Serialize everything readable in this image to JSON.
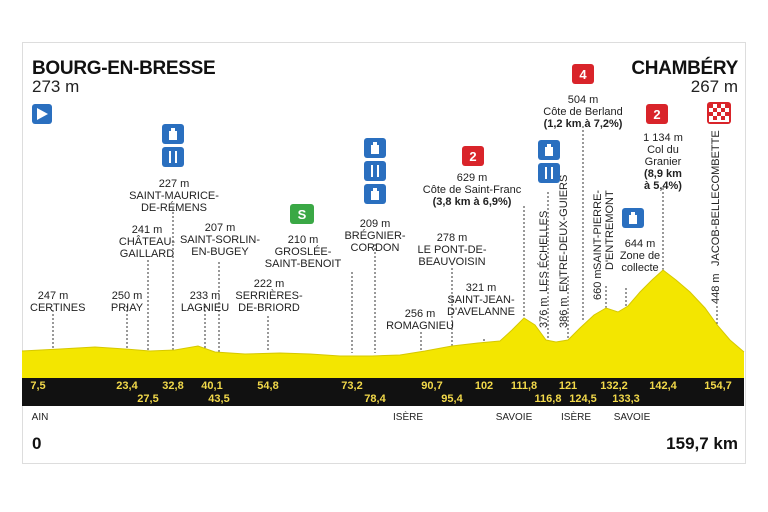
{
  "start": {
    "name": "BOURG-EN-BRESSE",
    "alt": "273 m"
  },
  "finish": {
    "name": "CHAMBÉRY",
    "alt": "267 m"
  },
  "distance_start": "0",
  "distance_total": "159,7 km",
  "points": [
    {
      "alt": "247 m",
      "name": "CERTINES"
    },
    {
      "alt": "250 m",
      "name": "PRIAY"
    },
    {
      "alt": "241 m",
      "name": "CHÂTEAU-\nGAILLARD"
    },
    {
      "alt": "227 m",
      "name": "SAINT-MAURICE-\nDE-RÉMENS"
    },
    {
      "alt": "233 m",
      "name": "LAGNIEU"
    },
    {
      "alt": "207 m",
      "name": "SAINT-SORLIN-\nEN-BUGEY"
    },
    {
      "alt": "222 m",
      "name": "SERRIÈRES-\nDE-BRIORD"
    },
    {
      "alt": "210 m",
      "name": "GROSLÉE-\nSAINT-BENOIT"
    },
    {
      "alt": "209 m",
      "name": "BRÉGNIER-\nCORDON"
    },
    {
      "alt": "256 m",
      "name": "ROMAGNIEU"
    },
    {
      "alt": "278 m",
      "name": "LE PONT-DE-\nBEAUVOISIN"
    },
    {
      "alt": "321 m",
      "name": "SAINT-JEAN-\nD'AVELANNE"
    },
    {
      "alt": "629 m",
      "name": "Côte de Saint-Franc",
      "detail": "(3,8 km à 6,9%)"
    },
    {
      "alt": "376 m",
      "name": "LES ÉCHELLES"
    },
    {
      "alt": "386 m",
      "name": "ENTRE-DEUX-GUIERS"
    },
    {
      "alt": "504 m",
      "name": "Côte de Berland",
      "detail": "(1,2 km à 7,2%)"
    },
    {
      "alt": "660 m",
      "name": "SAINT-PIERRE-\nD'ENTREMONT"
    },
    {
      "alt": "644 m",
      "name": "Zone de\ncollecte"
    },
    {
      "alt": "1 134 m",
      "name": "Col du\nGranier",
      "detail": "(8,9 km\nà 5,4%)"
    },
    {
      "alt": "448 m",
      "name": "JACOB-BELLECOMBETTE"
    }
  ],
  "km_top": [
    "7,5",
    "23,4",
    "32,8",
    "40,1",
    "54,8",
    "73,2",
    "90,7",
    "102",
    "111,8",
    "121",
    "132,2",
    "142,4",
    "154,7"
  ],
  "km_bottom": [
    "27,5",
    "43,5",
    "78,4",
    "95,4",
    "116,8",
    "124,5",
    "133,3"
  ],
  "regions": [
    "AIN",
    "ISÈRE",
    "SAVOIE",
    "ISÈRE",
    "SAVOIE"
  ],
  "categories": {
    "berland": "4",
    "saint_franc": "2",
    "granier": "2",
    "sprint": "S"
  },
  "colors": {
    "profile": "#f3e600",
    "bar": "#111111",
    "km_text": "#f2d94a",
    "blue": "#2a6fbf",
    "red": "#d9242a",
    "green": "#3aa845"
  }
}
